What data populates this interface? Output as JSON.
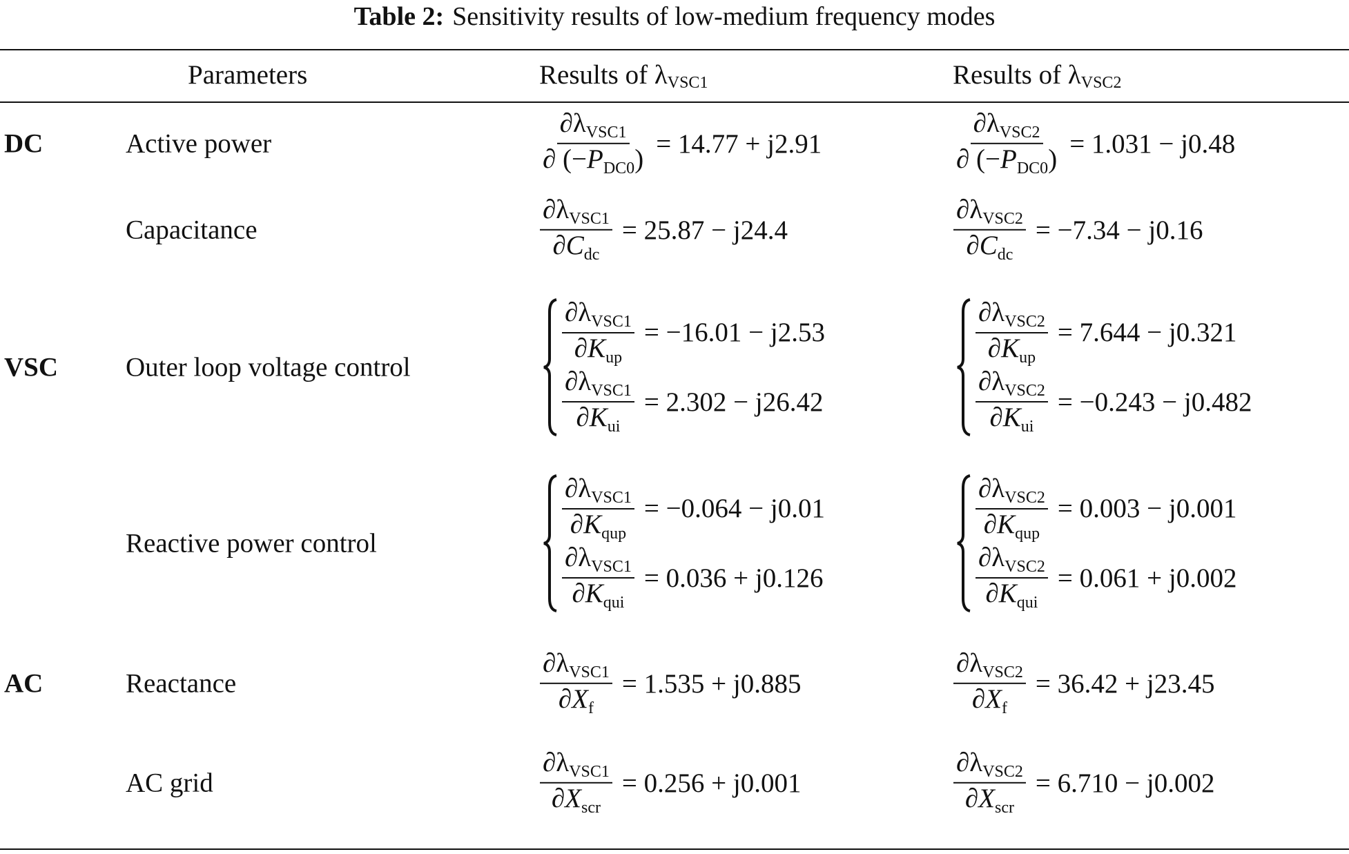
{
  "title": {
    "label": "Table 2:",
    "text": "Sensitivity results of low-medium frequency modes"
  },
  "headers": {
    "parameters": "Parameters",
    "col1_prefix": "Results of λ",
    "col1_sub": "VSC1",
    "col2_prefix": "Results of λ",
    "col2_sub": "VSC2"
  },
  "rows": [
    {
      "group": "DC",
      "parameter": "Active power",
      "col1": [
        {
          "num": "∂λ",
          "num_sub": "VSC1",
          "den_open": "∂ (−",
          "den_var": "P",
          "den_sub": "DC0",
          "den_close": ")",
          "value": "= 14.77 + j2.91"
        }
      ],
      "col2": [
        {
          "num": "∂λ",
          "num_sub": "VSC2",
          "den_open": "∂ (−",
          "den_var": "P",
          "den_sub": "DC0",
          "den_close": ")",
          "value": "= 1.031 − j0.48"
        }
      ]
    },
    {
      "group": "",
      "parameter": "Capacitance",
      "col1": [
        {
          "num": "∂λ",
          "num_sub": "VSC1",
          "den_open": "∂",
          "den_var": "C",
          "den_sub": "dc",
          "den_close": "",
          "value": "= 25.87 − j24.4"
        }
      ],
      "col2": [
        {
          "num": "∂λ",
          "num_sub": "VSC2",
          "den_open": "∂",
          "den_var": "C",
          "den_sub": "dc",
          "den_close": "",
          "value": "= −7.34 − j0.16"
        }
      ]
    },
    {
      "group": "VSC",
      "parameter": "Outer loop voltage control",
      "col1": [
        {
          "num": "∂λ",
          "num_sub": "VSC1",
          "den_open": "∂",
          "den_var": "K",
          "den_sub": "up",
          "den_close": "",
          "value": "= −16.01 − j2.53"
        },
        {
          "num": "∂λ",
          "num_sub": "VSC1",
          "den_open": "∂",
          "den_var": "K",
          "den_sub": "ui",
          "den_close": "",
          "value": "= 2.302 − j26.42"
        }
      ],
      "col2": [
        {
          "num": "∂λ",
          "num_sub": "VSC2",
          "den_open": "∂",
          "den_var": "K",
          "den_sub": "up",
          "den_close": "",
          "value": "= 7.644 − j0.321"
        },
        {
          "num": "∂λ",
          "num_sub": "VSC2",
          "den_open": "∂",
          "den_var": "K",
          "den_sub": "ui",
          "den_close": "",
          "value": "= −0.243 − j0.482"
        }
      ]
    },
    {
      "group": "",
      "parameter": "Reactive power control",
      "col1": [
        {
          "num": "∂λ",
          "num_sub": "VSC1",
          "den_open": "∂",
          "den_var": "K",
          "den_sub": "qup",
          "den_close": "",
          "value": "= −0.064 − j0.01"
        },
        {
          "num": "∂λ",
          "num_sub": "VSC1",
          "den_open": "∂",
          "den_var": "K",
          "den_sub": "qui",
          "den_close": "",
          "value": "= 0.036 + j0.126"
        }
      ],
      "col2": [
        {
          "num": "∂λ",
          "num_sub": "VSC2",
          "den_open": "∂",
          "den_var": "K",
          "den_sub": "qup",
          "den_close": "",
          "value": "= 0.003 − j0.001"
        },
        {
          "num": "∂λ",
          "num_sub": "VSC2",
          "den_open": "∂",
          "den_var": "K",
          "den_sub": "qui",
          "den_close": "",
          "value": "= 0.061 + j0.002"
        }
      ]
    },
    {
      "group": "AC",
      "parameter": "Reactance",
      "col1": [
        {
          "num": "∂λ",
          "num_sub": "VSC1",
          "den_open": "∂",
          "den_var": "X",
          "den_sub": "f",
          "den_close": "",
          "value": "= 1.535 + j0.885"
        }
      ],
      "col2": [
        {
          "num": "∂λ",
          "num_sub": "VSC2",
          "den_open": "∂",
          "den_var": "X",
          "den_sub": "f",
          "den_close": "",
          "value": "= 36.42 + j23.45"
        }
      ]
    },
    {
      "group": "",
      "parameter": "AC grid",
      "col1": [
        {
          "num": "∂λ",
          "num_sub": "VSC1",
          "den_open": "∂",
          "den_var": "X",
          "den_sub": "scr",
          "den_close": "",
          "value": "= 0.256 + j0.001"
        }
      ],
      "col2": [
        {
          "num": "∂λ",
          "num_sub": "VSC2",
          "den_open": "∂",
          "den_var": "X",
          "den_sub": "scr",
          "den_close": "",
          "value": "= 6.710 − j0.002"
        }
      ]
    }
  ]
}
